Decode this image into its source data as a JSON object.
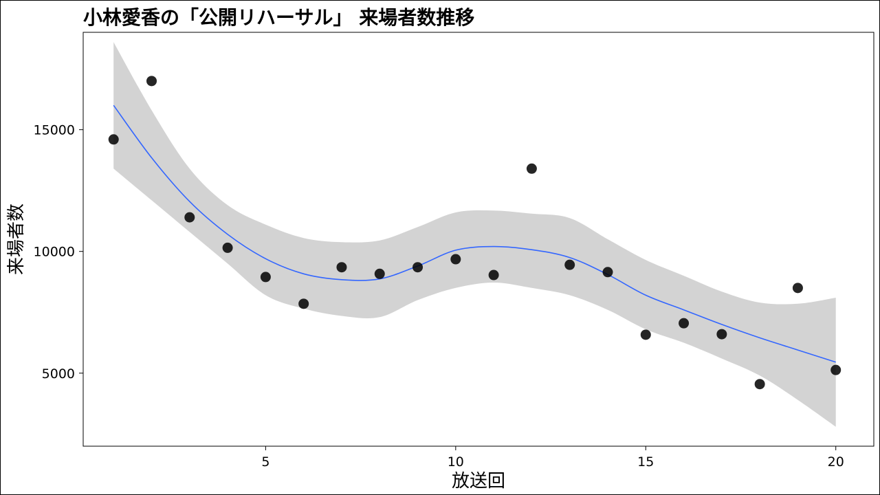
{
  "chart_data": {
    "type": "scatter",
    "title": "小林愛香の「公開リハーサル」 来場者数推移",
    "xlabel": "放送回",
    "ylabel": "来場者数",
    "xlim": [
      0.2,
      21.0
    ],
    "ylim": [
      2000,
      19000
    ],
    "xticks": [
      5,
      10,
      15,
      20
    ],
    "yticks": [
      5000,
      10000,
      15000
    ],
    "grid": false,
    "colors": {
      "points": "#000000",
      "smooth_line": "#3366ff",
      "confidence_band": "#d3d3d3"
    },
    "points": [
      {
        "x": 1,
        "y": 14600
      },
      {
        "x": 2,
        "y": 17000
      },
      {
        "x": 3,
        "y": 11400
      },
      {
        "x": 4,
        "y": 10150
      },
      {
        "x": 5,
        "y": 8950
      },
      {
        "x": 6,
        "y": 7850
      },
      {
        "x": 7,
        "y": 9350
      },
      {
        "x": 8,
        "y": 9080
      },
      {
        "x": 9,
        "y": 9350
      },
      {
        "x": 10,
        "y": 9680
      },
      {
        "x": 11,
        "y": 9030
      },
      {
        "x": 12,
        "y": 13400
      },
      {
        "x": 13,
        "y": 9450
      },
      {
        "x": 14,
        "y": 9150
      },
      {
        "x": 15,
        "y": 6580
      },
      {
        "x": 16,
        "y": 7050
      },
      {
        "x": 17,
        "y": 6600
      },
      {
        "x": 18,
        "y": 4550
      },
      {
        "x": 19,
        "y": 8500
      },
      {
        "x": 20,
        "y": 5130
      }
    ],
    "smooth": [
      {
        "x": 1,
        "fit": 16000,
        "lower": 13400,
        "upper": 18600
      },
      {
        "x": 2,
        "fit": 13850,
        "lower": 12100,
        "upper": 15800
      },
      {
        "x": 3,
        "fit": 12050,
        "lower": 10800,
        "upper": 13400
      },
      {
        "x": 4,
        "fit": 10700,
        "lower": 9500,
        "upper": 11900
      },
      {
        "x": 5,
        "fit": 9700,
        "lower": 8200,
        "upper": 11100
      },
      {
        "x": 6,
        "fit": 9080,
        "lower": 7650,
        "upper": 10550
      },
      {
        "x": 7,
        "fit": 8840,
        "lower": 7350,
        "upper": 10380
      },
      {
        "x": 8,
        "fit": 8870,
        "lower": 7300,
        "upper": 10450
      },
      {
        "x": 9,
        "fit": 9400,
        "lower": 8000,
        "upper": 11000
      },
      {
        "x": 10,
        "fit": 10050,
        "lower": 8500,
        "upper": 11600
      },
      {
        "x": 11,
        "fit": 10200,
        "lower": 8720,
        "upper": 11680
      },
      {
        "x": 12,
        "fit": 10070,
        "lower": 8500,
        "upper": 11550
      },
      {
        "x": 13,
        "fit": 9750,
        "lower": 8200,
        "upper": 11370
      },
      {
        "x": 14,
        "fit": 9050,
        "lower": 7600,
        "upper": 10500
      },
      {
        "x": 15,
        "fit": 8200,
        "lower": 6800,
        "upper": 9650
      },
      {
        "x": 16,
        "fit": 7600,
        "lower": 6250,
        "upper": 9000
      },
      {
        "x": 17,
        "fit": 7000,
        "lower": 5600,
        "upper": 8350
      },
      {
        "x": 18,
        "fit": 6450,
        "lower": 4900,
        "upper": 7900
      },
      {
        "x": 19,
        "fit": 5950,
        "lower": 3900,
        "upper": 7850
      },
      {
        "x": 20,
        "fit": 5450,
        "lower": 2800,
        "upper": 8100
      }
    ]
  }
}
